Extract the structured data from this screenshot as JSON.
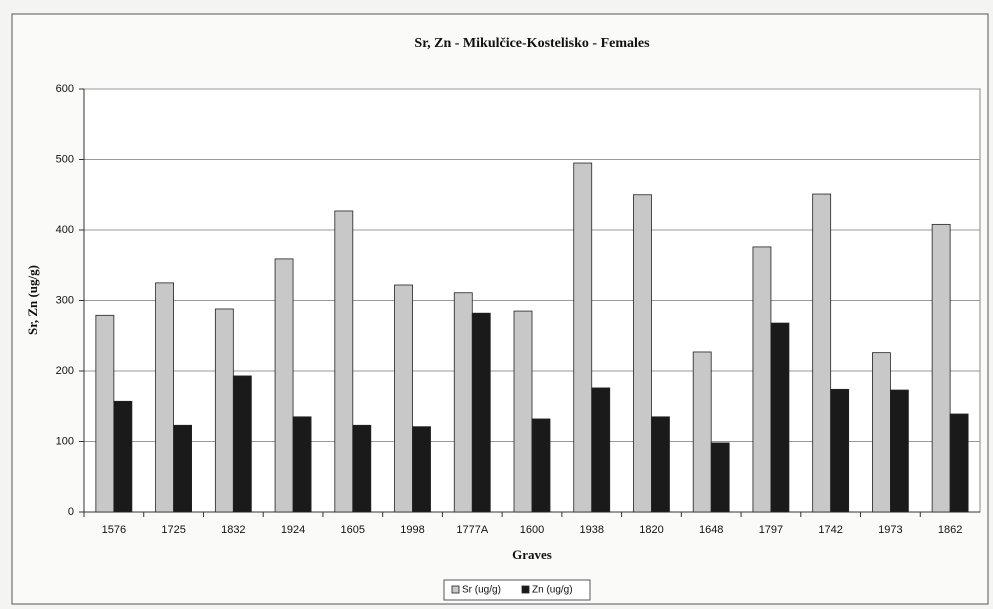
{
  "chart_data": {
    "type": "bar",
    "title": "Sr, Zn - Mikulčice-Kostelisko - Females",
    "x_label": "Graves",
    "y_label": "Sr, Zn (ug/g)",
    "categories": [
      "1576",
      "1725",
      "1832",
      "1924",
      "1605",
      "1998",
      "1777A",
      "1600",
      "1938",
      "1820",
      "1648",
      "1797",
      "1742",
      "1973",
      "1862"
    ],
    "series": [
      {
        "name": "Sr (ug/g)",
        "color": "#c8c8c8",
        "values": [
          279,
          325,
          288,
          359,
          427,
          322,
          311,
          285,
          495,
          450,
          227,
          376,
          451,
          226,
          408
        ]
      },
      {
        "name": "Zn (ug/g)",
        "color": "#1a1a1a",
        "values": [
          157,
          123,
          193,
          135,
          123,
          121,
          282,
          132,
          176,
          135,
          98,
          268,
          174,
          173,
          139
        ]
      }
    ],
    "ylim": [
      0,
      600
    ],
    "yticks": [
      0,
      100,
      200,
      300,
      400,
      500,
      600
    ],
    "grid": true,
    "legend": "bottom"
  }
}
